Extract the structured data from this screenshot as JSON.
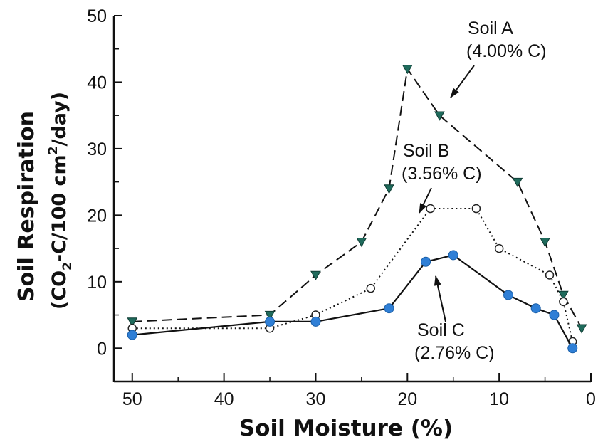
{
  "chart_data": {
    "type": "line",
    "title": "",
    "xlabel": "Soil Moisture (%)",
    "ylabel_line1": "Soil Respiration",
    "ylabel_line2_parts": [
      "(CO",
      "2",
      "-C/100 cm",
      "2",
      "/day)"
    ],
    "xlim": [
      52,
      0
    ],
    "ylim": [
      -5,
      50
    ],
    "x_reversed": true,
    "x_ticks": [
      50,
      40,
      30,
      20,
      10,
      0
    ],
    "x_tick_labels": [
      "50",
      "40",
      "30",
      "20",
      "10",
      "0"
    ],
    "y_ticks": [
      0,
      10,
      20,
      30,
      40,
      50
    ],
    "y_tick_labels": [
      "0",
      "10",
      "20",
      "30",
      "40",
      "50"
    ],
    "grid": false,
    "legend": "none",
    "series": [
      {
        "name": "Soil A",
        "style": "dashed",
        "marker": "triangle-down-filled",
        "color": "#1f6b5c",
        "x": [
          50,
          35,
          30,
          25,
          22,
          20,
          16.5,
          8,
          5,
          3,
          1
        ],
        "values": [
          4,
          5,
          11,
          16,
          24,
          42,
          35,
          25,
          16,
          8,
          3
        ]
      },
      {
        "name": "Soil B",
        "style": "dotted",
        "marker": "circle-open",
        "color": "#222222",
        "x": [
          50,
          35,
          30,
          24,
          17.5,
          12.5,
          10,
          4.5,
          3,
          2
        ],
        "values": [
          3,
          3,
          5,
          9,
          21,
          21,
          15,
          11,
          7,
          1
        ]
      },
      {
        "name": "Soil C",
        "style": "solid",
        "marker": "circle-filled",
        "color": "#2f7fd6",
        "x": [
          50,
          35,
          30,
          22,
          18,
          15,
          9,
          6,
          4,
          2
        ],
        "values": [
          2,
          4,
          4,
          6,
          13,
          14,
          8,
          6,
          5,
          0
        ]
      }
    ],
    "annotations": [
      {
        "id": "a",
        "lines": [
          "Soil A",
          "(4.00% C)"
        ]
      },
      {
        "id": "b",
        "lines": [
          "Soil B",
          "(3.56% C)"
        ]
      },
      {
        "id": "c",
        "lines": [
          "Soil C",
          "(2.76% C)"
        ]
      }
    ]
  }
}
